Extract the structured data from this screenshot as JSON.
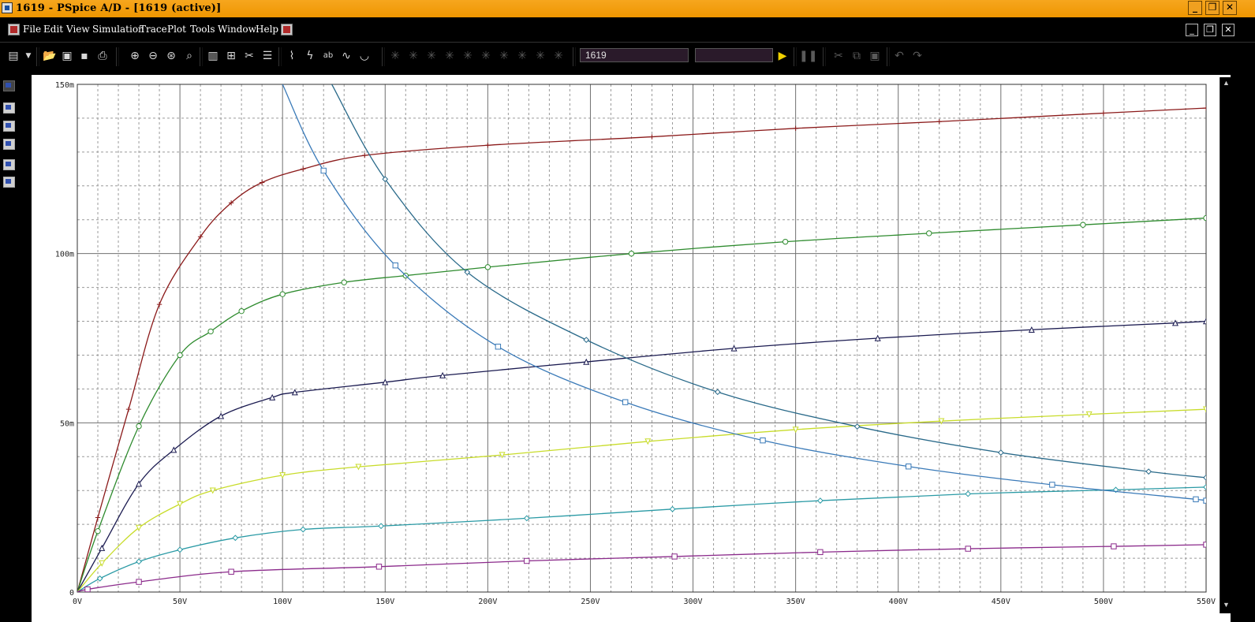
{
  "window": {
    "title": "1619 - PSpice A/D  - [1619 (active)]"
  },
  "menu": [
    "File",
    "Edit",
    "View",
    "Simulation",
    "Trace",
    "Plot",
    "Tools",
    "Window",
    "Help"
  ],
  "toolbar": {
    "simulation_profile": "1619",
    "secondary_field": ""
  },
  "icons": {
    "app": "pspice-app-icon",
    "minimize": "minimize-icon",
    "restore": "restore-icon",
    "close": "close-icon",
    "run": "run-play-icon",
    "pause": "pause-icon"
  },
  "chart_data": {
    "type": "line",
    "title": "",
    "xlabel": "",
    "ylabel": "",
    "x_tick_labels": [
      "0V",
      "50V",
      "100V",
      "150V",
      "200V",
      "250V",
      "300V",
      "350V",
      "400V",
      "450V",
      "500V",
      "550V"
    ],
    "y_tick_labels": [
      "0",
      "50m",
      "100m",
      "150m"
    ],
    "xlim": [
      0,
      550
    ],
    "ylim": [
      0,
      0.15
    ],
    "grid": true,
    "series": [
      {
        "color": "#8b1a1a",
        "marker": "plus",
        "x": [
          0,
          10,
          25,
          40,
          60,
          75,
          90,
          110,
          140,
          200,
          280,
          350,
          420,
          500,
          550
        ],
        "y": [
          0,
          0.022,
          0.054,
          0.085,
          0.105,
          0.115,
          0.121,
          0.125,
          0.129,
          0.132,
          0.1345,
          0.137,
          0.139,
          0.1415,
          0.143
        ]
      },
      {
        "color": "#2e8b2e",
        "marker": "circle",
        "x": [
          0,
          10,
          30,
          50,
          65,
          80,
          100,
          130,
          160,
          200,
          270,
          345,
          415,
          490,
          550
        ],
        "y": [
          0,
          0.018,
          0.049,
          0.07,
          0.077,
          0.083,
          0.088,
          0.0915,
          0.0935,
          0.096,
          0.1,
          0.1035,
          0.106,
          0.1085,
          0.1105
        ]
      },
      {
        "color": "#1a1a50",
        "marker": "triangle",
        "x": [
          0,
          12,
          30,
          47,
          70,
          95,
          106,
          150,
          178,
          248,
          320,
          390,
          465,
          535,
          550
        ],
        "y": [
          0,
          0.013,
          0.032,
          0.042,
          0.052,
          0.0575,
          0.059,
          0.062,
          0.064,
          0.068,
          0.072,
          0.075,
          0.0775,
          0.0795,
          0.08
        ]
      },
      {
        "color": "#c8dc2a",
        "marker": "down-triangle",
        "x": [
          0,
          12,
          30,
          50,
          66,
          100,
          137,
          207,
          278,
          350,
          421,
          493,
          550
        ],
        "y": [
          0,
          0.0085,
          0.019,
          0.026,
          0.03,
          0.0345,
          0.037,
          0.0405,
          0.0445,
          0.048,
          0.0505,
          0.0525,
          0.054
        ]
      },
      {
        "color": "#2a9aa5",
        "marker": "diamond",
        "x": [
          0,
          11,
          30,
          50,
          77,
          110,
          148,
          219,
          290,
          362,
          434,
          506,
          550
        ],
        "y": [
          0,
          0.004,
          0.009,
          0.0125,
          0.016,
          0.0185,
          0.0195,
          0.0218,
          0.0245,
          0.027,
          0.029,
          0.0302,
          0.031
        ]
      },
      {
        "color": "#8b2a8b",
        "marker": "square",
        "x": [
          0,
          5,
          30,
          75,
          147,
          219,
          291,
          362,
          434,
          505,
          550
        ],
        "y": [
          0,
          0.0008,
          0.003,
          0.006,
          0.0075,
          0.0092,
          0.0105,
          0.0118,
          0.0128,
          0.0135,
          0.014
        ]
      },
      {
        "color": "#3a7ab8",
        "marker": "square",
        "x": [
          100,
          120,
          155,
          205,
          267,
          334,
          405,
          475,
          545,
          550
        ],
        "y": [
          0.15,
          0.1245,
          0.0965,
          0.0725,
          0.0561,
          0.0448,
          0.0371,
          0.0317,
          0.0274,
          0.027
        ]
      },
      {
        "color": "#2a6a8a",
        "marker": "diamond",
        "x": [
          124,
          150,
          190,
          248,
          312,
          380,
          450,
          522,
          550
        ],
        "y": [
          0.15,
          0.122,
          0.0945,
          0.0745,
          0.0591,
          0.0489,
          0.0412,
          0.0356,
          0.0338
        ]
      }
    ]
  }
}
